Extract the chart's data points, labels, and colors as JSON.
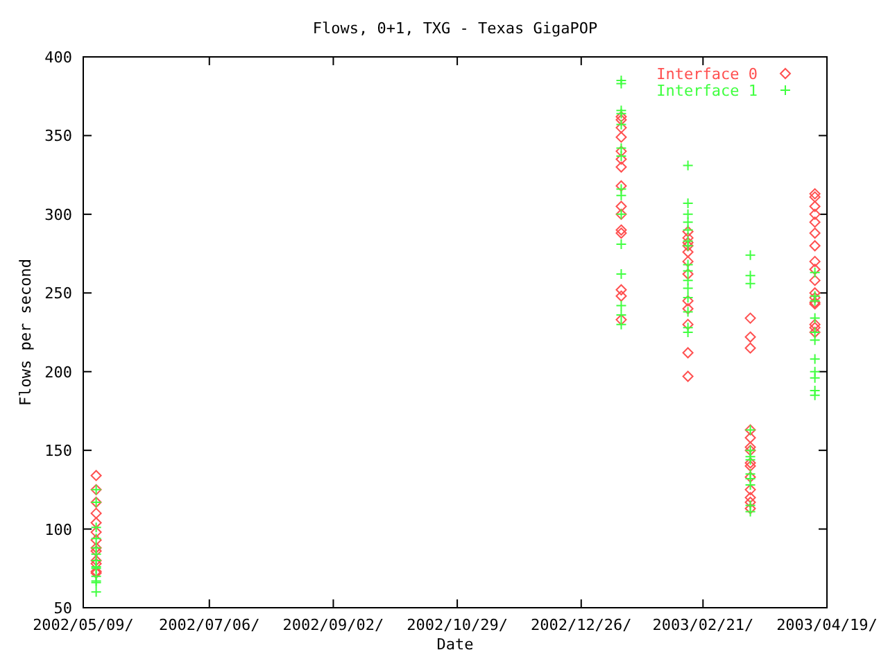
{
  "chart_data": {
    "type": "scatter",
    "title": "Flows, 0+1, TXG - Texas GigaPOP",
    "xlabel": "Date",
    "ylabel": "Flows per second",
    "xlim": [
      "2002-05-09",
      "2003-04-19T14:24"
    ],
    "xticks": [
      {
        "value": "2002-05-09",
        "label": "2002/05/09/"
      },
      {
        "value": "2002-07-06T14:24",
        "label": "2002/07/06/"
      },
      {
        "value": "2002-09-02T04:48",
        "label": "2002/09/02/"
      },
      {
        "value": "2002-10-29T19:12",
        "label": "2002/10/29/"
      },
      {
        "value": "2002-12-26T09:36",
        "label": "2002/12/26/"
      },
      {
        "value": "2003-02-21",
        "label": "2003/02/21/"
      },
      {
        "value": "2003-04-19T14:24",
        "label": "2003/04/19/"
      }
    ],
    "ylim": [
      50,
      400
    ],
    "yticks": [
      50,
      100,
      150,
      200,
      250,
      300,
      350,
      400
    ],
    "grid": false,
    "legend": "top right",
    "series": [
      {
        "name": "Interface 0",
        "color": "#ff5050",
        "marker": "diamond",
        "x": [
          "2002-05-15",
          "2002-05-15",
          "2002-05-15",
          "2002-05-15",
          "2002-05-15",
          "2002-05-15",
          "2002-05-15",
          "2002-05-15",
          "2002-05-15",
          "2002-05-15",
          "2002-05-15",
          "2002-05-15",
          "2002-05-15",
          "2003-01-14",
          "2003-01-14",
          "2003-01-14",
          "2003-01-14",
          "2003-01-14",
          "2003-01-14",
          "2003-01-14",
          "2003-01-14",
          "2003-01-14",
          "2003-01-14",
          "2003-01-14",
          "2003-01-14",
          "2003-01-14",
          "2003-01-14",
          "2003-01-14",
          "2003-02-14",
          "2003-02-14",
          "2003-02-14",
          "2003-02-14",
          "2003-02-14",
          "2003-02-14",
          "2003-02-14",
          "2003-02-14",
          "2003-02-14",
          "2003-02-14",
          "2003-02-14",
          "2003-02-14",
          "2003-03-15",
          "2003-03-15",
          "2003-03-15",
          "2003-03-15",
          "2003-03-15",
          "2003-03-15",
          "2003-03-15",
          "2003-03-15",
          "2003-03-15",
          "2003-03-15",
          "2003-03-15",
          "2003-03-15",
          "2003-03-15",
          "2003-03-15",
          "2003-04-14",
          "2003-04-14",
          "2003-04-14",
          "2003-04-14",
          "2003-04-14",
          "2003-04-14",
          "2003-04-14",
          "2003-04-14",
          "2003-04-14",
          "2003-04-14",
          "2003-04-14",
          "2003-04-14",
          "2003-04-14",
          "2003-04-14",
          "2003-04-14",
          "2003-04-14",
          "2003-04-14"
        ],
        "values": [
          134,
          125,
          117,
          110,
          104,
          98,
          93,
          88,
          86,
          80,
          78,
          73,
          72,
          362,
          360,
          355,
          349,
          340,
          335,
          330,
          318,
          305,
          300,
          290,
          288,
          252,
          248,
          233,
          289,
          285,
          282,
          280,
          276,
          270,
          262,
          245,
          240,
          230,
          212,
          197,
          234,
          222,
          215,
          163,
          158,
          152,
          150,
          142,
          140,
          133,
          125,
          120,
          117,
          113,
          313,
          311,
          305,
          300,
          295,
          288,
          280,
          270,
          265,
          258,
          250,
          247,
          244,
          243,
          230,
          228,
          225
        ]
      },
      {
        "name": "Interface 1",
        "color": "#40ff40",
        "marker": "cross",
        "x": [
          "2002-05-15",
          "2002-05-15",
          "2002-05-15",
          "2002-05-15",
          "2002-05-15",
          "2002-05-15",
          "2002-05-15",
          "2002-05-15",
          "2002-05-15",
          "2002-05-15",
          "2002-05-15",
          "2002-05-15",
          "2002-05-15",
          "2003-01-14",
          "2003-01-14",
          "2003-01-14",
          "2003-01-14",
          "2003-01-14",
          "2003-01-14",
          "2003-01-14",
          "2003-01-14",
          "2003-01-14",
          "2003-01-14",
          "2003-01-14",
          "2003-01-14",
          "2003-01-14",
          "2003-01-14",
          "2003-01-14",
          "2003-02-14",
          "2003-02-14",
          "2003-02-14",
          "2003-02-14",
          "2003-02-14",
          "2003-02-14",
          "2003-02-14",
          "2003-02-14",
          "2003-02-14",
          "2003-02-14",
          "2003-02-14",
          "2003-02-14",
          "2003-02-14",
          "2003-02-14",
          "2003-02-14",
          "2003-03-15",
          "2003-03-15",
          "2003-03-15",
          "2003-03-15",
          "2003-03-15",
          "2003-03-15",
          "2003-03-15",
          "2003-03-15",
          "2003-03-15",
          "2003-03-15",
          "2003-03-15",
          "2003-03-15",
          "2003-04-14",
          "2003-04-14",
          "2003-04-14",
          "2003-04-14",
          "2003-04-14",
          "2003-04-14",
          "2003-04-14",
          "2003-04-14",
          "2003-04-14",
          "2003-04-14",
          "2003-04-14"
        ],
        "values": [
          125,
          117,
          101,
          94,
          88,
          84,
          80,
          76,
          75,
          70,
          67,
          66,
          60,
          385,
          383,
          366,
          364,
          357,
          342,
          337,
          316,
          312,
          300,
          281,
          262,
          242,
          236,
          230,
          331,
          307,
          300,
          295,
          290,
          283,
          280,
          268,
          264,
          258,
          253,
          247,
          238,
          228,
          225,
          274,
          261,
          256,
          163,
          150,
          146,
          144,
          135,
          132,
          128,
          115,
          111,
          263,
          248,
          245,
          234,
          225,
          220,
          208,
          200,
          196,
          188,
          185
        ]
      }
    ]
  }
}
